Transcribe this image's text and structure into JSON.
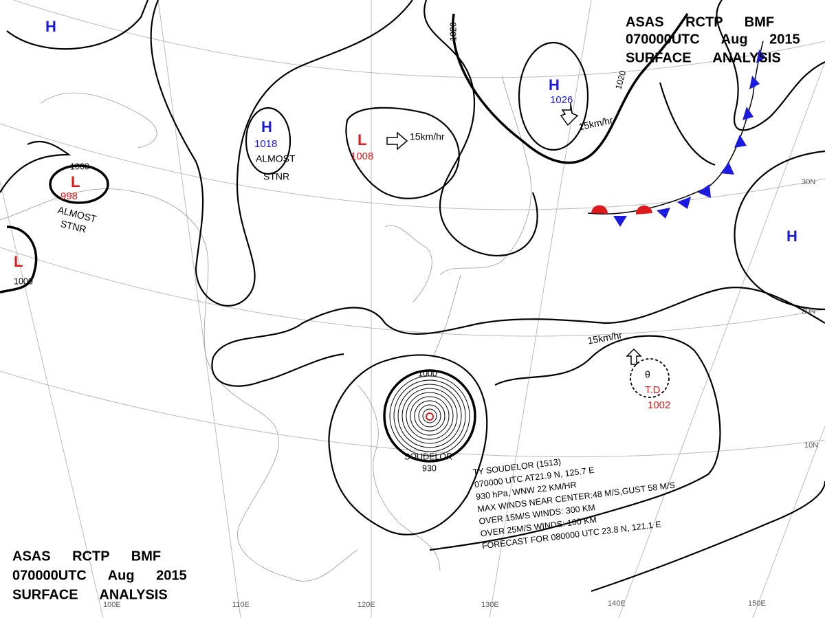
{
  "header_top": {
    "lines": [
      "ASAS RCTP BMF",
      "070000UTC Aug 2015",
      "SURFACE ANALYSIS"
    ]
  },
  "header_bottom": {
    "lines": [
      "ASAS RCTP BMF",
      "070000UTC Aug 2015",
      "SURFACE ANALYSIS"
    ]
  },
  "systems": [
    {
      "label": "H"
    },
    {
      "label": "H",
      "value": "1018",
      "note": [
        "ALMOST",
        "STNR"
      ]
    },
    {
      "label": "L",
      "value": "998",
      "note": [
        "ALMOST",
        "STNR"
      ]
    },
    {
      "label": "L"
    },
    {
      "label": "L",
      "value": "1008",
      "movement": "15km/hr"
    },
    {
      "label": "H",
      "value": "1026",
      "movement": "15km/hr"
    },
    {
      "label": "H"
    },
    {
      "label": "T.D.",
      "value": "1002",
      "movement": "15km/hr"
    },
    {
      "label": "SOUDELOR",
      "value": "930"
    }
  ],
  "isobar_labels": [
    "1000",
    "1000",
    "1020",
    "1020",
    "1000"
  ],
  "typhoon_info": [
    "TY SOUDELOR (1513)",
    "070000 UTC AT21.9 N, 125.7 E",
    "930 hPa, WNW 22 KM/HR",
    "MAX WINDS NEAR CENTER:48 M/S,GUST 58 M/S",
    "OVER 15M/S WINDS: 300 KM",
    "OVER 25M/S WINDS: 100 KM",
    "FORECAST FOR 080000 UTC 23.8 N, 121.1 E"
  ],
  "longitudes": [
    "100E",
    "110E",
    "120E",
    "130E",
    "140E",
    "150E"
  ],
  "latitudes": [
    "30N",
    "20N",
    "10N"
  ]
}
